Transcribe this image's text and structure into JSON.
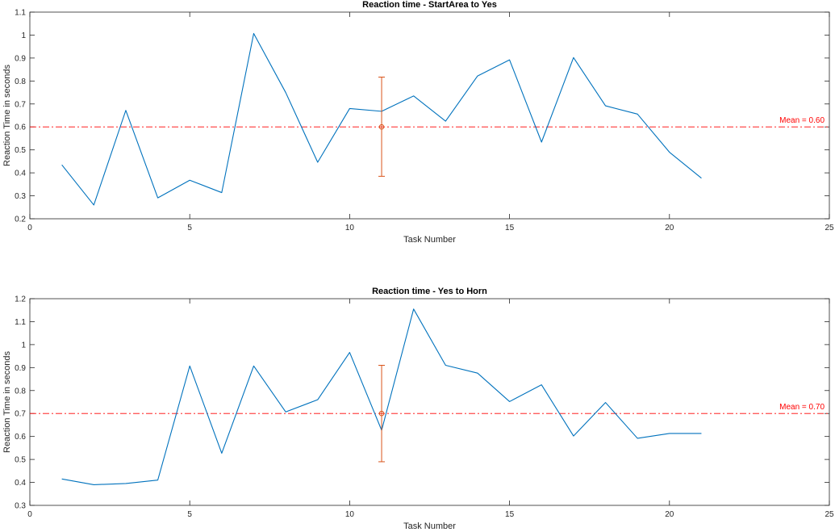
{
  "chart_data": [
    {
      "type": "line",
      "title": "Reaction time - StartArea to Yes",
      "xlabel": "Task Number",
      "ylabel": "Reaction Time in seconds",
      "xlim": [
        0,
        25
      ],
      "ylim": [
        0.2,
        1.1
      ],
      "xticks": [
        "0",
        "5",
        "10",
        "15",
        "20",
        "25"
      ],
      "yticks": [
        "0.2",
        "0.3",
        "0.4",
        "0.5",
        "0.6",
        "0.7",
        "0.8",
        "0.9",
        "1",
        "1.1"
      ],
      "grid": false,
      "series": [
        {
          "x": [
            1,
            2,
            3,
            4,
            5,
            6,
            7,
            8,
            9,
            10,
            11,
            12,
            13,
            14,
            15,
            16,
            17,
            18,
            19,
            20,
            21
          ],
          "values": [
            0.435,
            0.26,
            0.672,
            0.291,
            0.368,
            0.314,
            1.007,
            0.75,
            0.446,
            0.68,
            0.668,
            0.735,
            0.625,
            0.822,
            0.892,
            0.534,
            0.902,
            0.692,
            0.656,
            0.49,
            0.377
          ],
          "color": "#0072BD"
        }
      ],
      "mean": {
        "value": 0.6,
        "label": "Mean = 0.60",
        "color": "#FF0000"
      },
      "errorbar": {
        "x": 11,
        "y": 0.6,
        "low": 0.385,
        "high": 0.817,
        "color": "#D95319"
      }
    },
    {
      "type": "line",
      "title": "Reaction time - Yes to Horn",
      "xlabel": "Task Number",
      "ylabel": "Reaction Time in seconds",
      "xlim": [
        0,
        25
      ],
      "ylim": [
        0.3,
        1.2
      ],
      "xticks": [
        "0",
        "5",
        "10",
        "15",
        "20",
        "25"
      ],
      "yticks": [
        "0.3",
        "0.4",
        "0.5",
        "0.6",
        "0.7",
        "0.8",
        "0.9",
        "1",
        "1.1",
        "1.2"
      ],
      "grid": false,
      "series": [
        {
          "x": [
            1,
            2,
            3,
            4,
            5,
            6,
            7,
            8,
            9,
            10,
            11,
            12,
            13,
            14,
            15,
            16,
            17,
            18,
            19,
            20,
            21
          ],
          "values": [
            0.415,
            0.39,
            0.395,
            0.41,
            0.907,
            0.527,
            0.907,
            0.707,
            0.76,
            0.966,
            0.627,
            1.155,
            0.91,
            0.876,
            0.752,
            0.825,
            0.602,
            0.748,
            0.592,
            0.613,
            0.613
          ],
          "color": "#0072BD"
        }
      ],
      "mean": {
        "value": 0.7,
        "label": "Mean = 0.70",
        "color": "#FF0000"
      },
      "errorbar": {
        "x": 11,
        "y": 0.7,
        "low": 0.49,
        "high": 0.91,
        "color": "#D95319"
      }
    }
  ]
}
